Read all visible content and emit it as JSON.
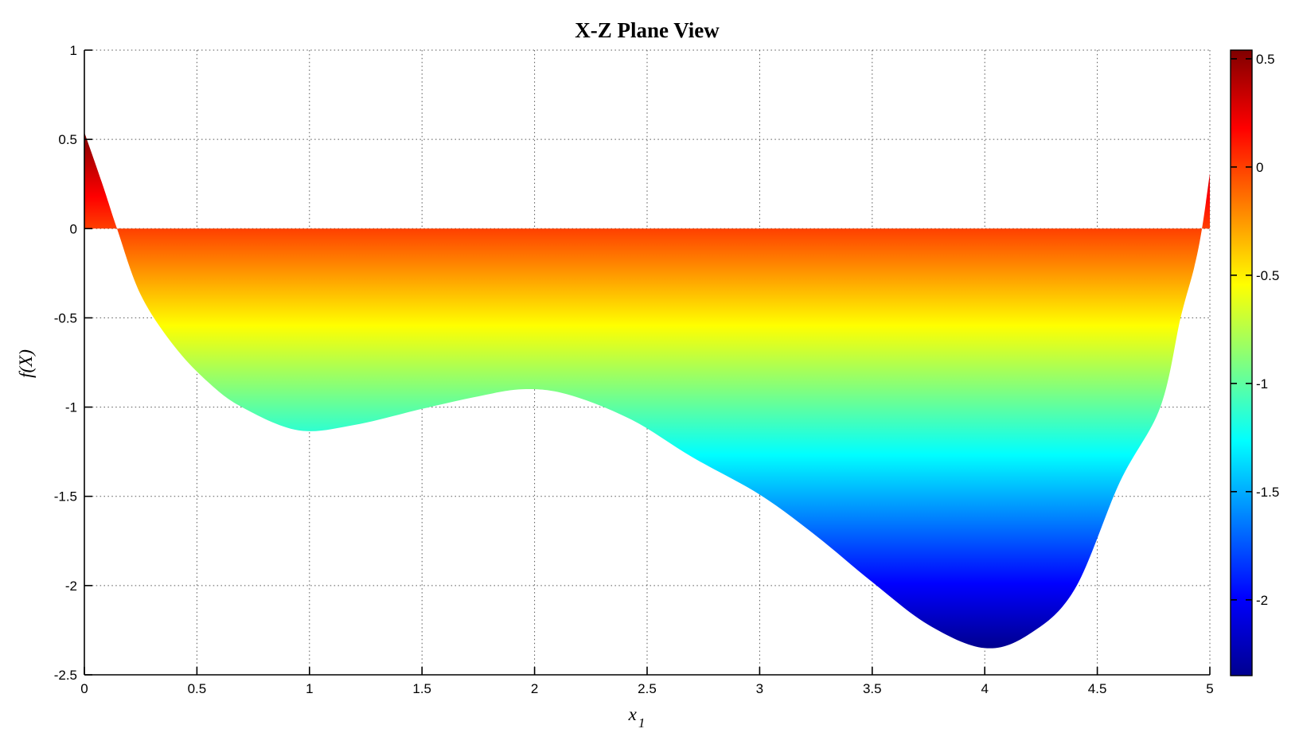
{
  "title": "X-Z Plane View",
  "axes": {
    "xlabel": "x",
    "xlabel_sub": "1",
    "ylabel": "f(X)",
    "x_tick_labels": [
      "0",
      "0.5",
      "1",
      "1.5",
      "2",
      "2.5",
      "3",
      "3.5",
      "4",
      "4.5",
      "5"
    ],
    "x_tick_values": [
      0,
      0.5,
      1,
      1.5,
      2,
      2.5,
      3,
      3.5,
      4,
      4.5,
      5
    ],
    "y_tick_labels": [
      "1",
      "0.5",
      "0",
      "-0.5",
      "-1",
      "-1.5",
      "-2",
      "-2.5"
    ],
    "y_tick_values": [
      1,
      0.5,
      0,
      -0.5,
      -1,
      -1.5,
      -2,
      -2.5
    ],
    "xlim": [
      0,
      5
    ],
    "ylim": [
      -2.5,
      1
    ],
    "grid": true
  },
  "colorbar": {
    "tick_labels": [
      "0.5",
      "0",
      "-0.5",
      "-1",
      "-1.5",
      "-2"
    ],
    "tick_values": [
      0.5,
      0,
      -0.5,
      -1,
      -1.5,
      -2
    ],
    "clim": [
      -2.35,
      0.54
    ],
    "colormap_name": "jet",
    "colormap": [
      [
        0.0,
        "#00008F"
      ],
      [
        0.125,
        "#0000FF"
      ],
      [
        0.375,
        "#00FFFF"
      ],
      [
        0.625,
        "#FFFF00"
      ],
      [
        0.875,
        "#FF0000"
      ],
      [
        1.0,
        "#800000"
      ]
    ]
  },
  "chart_data": {
    "type": "area",
    "title": "X-Z Plane View",
    "xlabel": "x_1",
    "ylabel": "f(X)",
    "xlim": [
      0,
      5
    ],
    "ylim": [
      -2.5,
      1
    ],
    "baseline": 0,
    "grid": true,
    "fill_rule": "area between curve f(x) and the line z=0, colored by z value with jet colormap over clim [-2.35, 0.54]",
    "local_minimum": {
      "x": 0.95,
      "z": -1.13
    },
    "local_maximum": {
      "x": 1.95,
      "z": -0.9
    },
    "global_minimum": {
      "x": 4.0,
      "z": -2.35
    },
    "zero_crossings": [
      0.145,
      4.965
    ],
    "points": [
      [
        0.0,
        0.54
      ],
      [
        0.08,
        0.25
      ],
      [
        0.145,
        0.0
      ],
      [
        0.25,
        -0.37
      ],
      [
        0.4,
        -0.66
      ],
      [
        0.55,
        -0.86
      ],
      [
        0.7,
        -1.0
      ],
      [
        0.95,
        -1.13
      ],
      [
        1.2,
        -1.1
      ],
      [
        1.5,
        -1.01
      ],
      [
        1.75,
        -0.94
      ],
      [
        1.95,
        -0.9
      ],
      [
        2.15,
        -0.93
      ],
      [
        2.43,
        -1.07
      ],
      [
        2.7,
        -1.28
      ],
      [
        3.0,
        -1.49
      ],
      [
        3.25,
        -1.72
      ],
      [
        3.5,
        -1.98
      ],
      [
        3.75,
        -2.22
      ],
      [
        4.0,
        -2.35
      ],
      [
        4.2,
        -2.27
      ],
      [
        4.4,
        -2.02
      ],
      [
        4.6,
        -1.42
      ],
      [
        4.78,
        -1.0
      ],
      [
        4.87,
        -0.5
      ],
      [
        4.93,
        -0.22
      ],
      [
        4.965,
        0.0
      ],
      [
        5.0,
        0.31
      ]
    ]
  }
}
